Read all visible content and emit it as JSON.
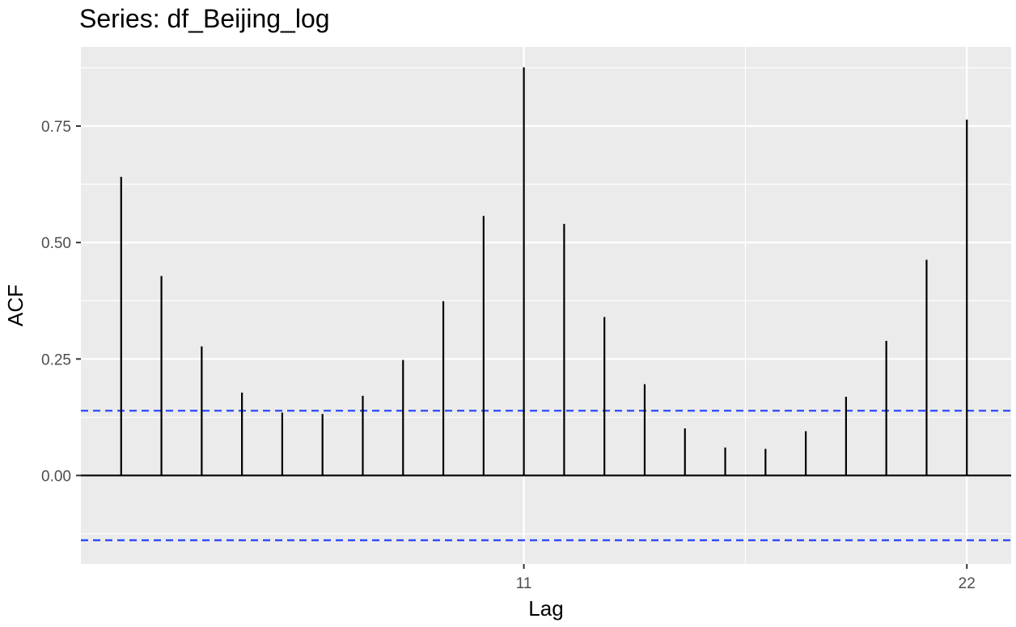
{
  "chart_data": {
    "type": "bar",
    "title": "Series: df_Beijing_log",
    "xlabel": "Lag",
    "ylabel": "ACF",
    "x_ticks": [
      11,
      22
    ],
    "y_ticks": [
      0.0,
      0.25,
      0.5,
      0.75
    ],
    "y_tick_labels": [
      "0.00",
      "0.25",
      "0.50",
      "0.75"
    ],
    "xlim": [
      0,
      23.1
    ],
    "ylim": [
      -0.19,
      0.92
    ],
    "lags": [
      1,
      2,
      3,
      4,
      5,
      6,
      7,
      8,
      9,
      10,
      11,
      12,
      13,
      14,
      15,
      16,
      17,
      18,
      19,
      20,
      21,
      22
    ],
    "values": [
      0.641,
      0.428,
      0.277,
      0.178,
      0.135,
      0.132,
      0.171,
      0.248,
      0.374,
      0.557,
      0.876,
      0.54,
      0.34,
      0.196,
      0.101,
      0.06,
      0.057,
      0.095,
      0.169,
      0.289,
      0.463,
      0.764
    ],
    "ci": 0.139,
    "grid": true,
    "colors": {
      "panel": "#ebebeb",
      "grid": "#ffffff",
      "bar": "#000000",
      "ci_line": "#1f3fff",
      "zero_line": "#000000"
    }
  }
}
